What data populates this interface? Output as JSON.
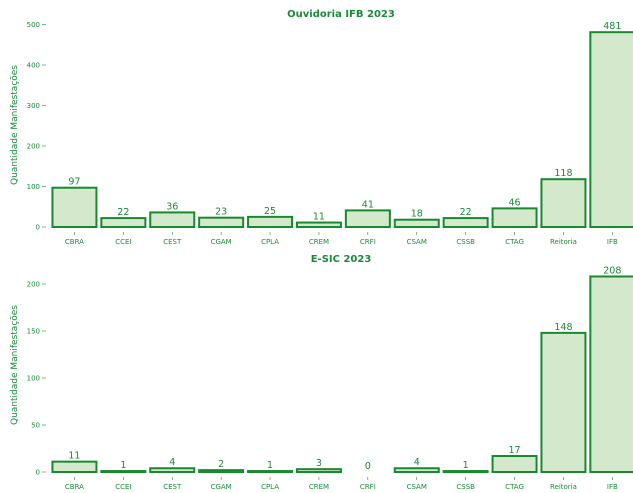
{
  "colors": {
    "bar_fill": "#d4e8cc",
    "bar_stroke": "#178a2e",
    "text": "#1a8a3a"
  },
  "chart_data": [
    {
      "type": "bar",
      "title": "Ouvidoria IFB 2023",
      "xlabel": "",
      "ylabel": "Quantidade Manifestações",
      "categories": [
        "CBRA",
        "CCEI",
        "CEST",
        "CGAM",
        "CPLA",
        "CREM",
        "CRFI",
        "CSAM",
        "CSSB",
        "CTAG",
        "Reitoria",
        "IFB"
      ],
      "values": [
        97,
        22,
        36,
        23,
        25,
        11,
        41,
        18,
        22,
        46,
        118,
        481
      ],
      "ylim": [
        0,
        500
      ],
      "yticks": [
        0,
        100,
        200,
        300,
        400,
        500
      ],
      "grid": false,
      "data_labels": true
    },
    {
      "type": "bar",
      "title": "E-SIC 2023",
      "xlabel": "",
      "ylabel": "Quantidade Manifestações",
      "categories": [
        "CBRA",
        "CCEI",
        "CEST",
        "CGAM",
        "CPLA",
        "CREM",
        "CRFI",
        "CSAM",
        "CSSB",
        "CTAG",
        "Reitoria",
        "IFB"
      ],
      "values": [
        11,
        1,
        4,
        2,
        1,
        3,
        0,
        4,
        1,
        17,
        148,
        208
      ],
      "ylim": [
        0,
        200
      ],
      "yticks": [
        0,
        50,
        100,
        150,
        200
      ],
      "grid": false,
      "data_labels": true
    }
  ]
}
